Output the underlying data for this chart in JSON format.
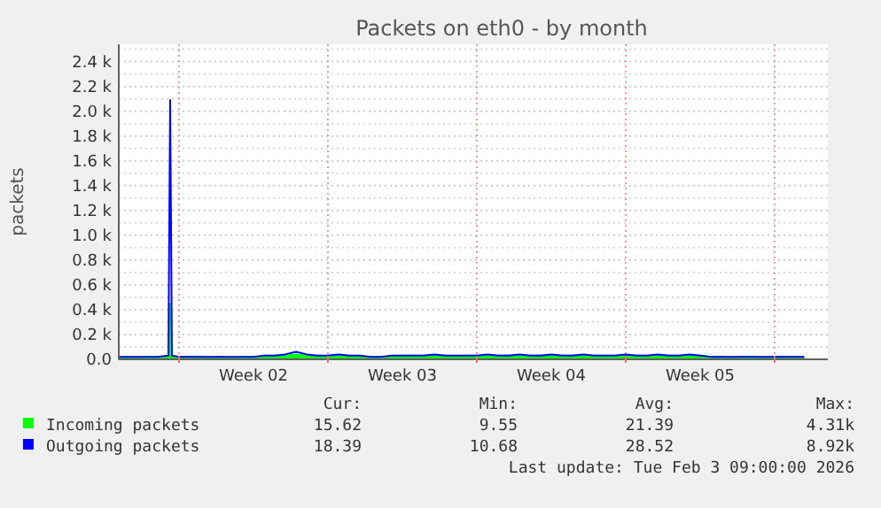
{
  "chart_data": {
    "type": "line",
    "title": "Packets on eth0 - by month",
    "ylabel": "packets",
    "xlim": [
      "2026-01-02T04:00",
      "2026-02-04T12:00"
    ],
    "xticks": [
      {
        "value": "2026-01-05T00:00",
        "label": null
      },
      {
        "value": "2026-01-08T12:00",
        "label": "Week 02"
      },
      {
        "value": "2026-01-12T00:00",
        "label": null
      },
      {
        "value": "2026-01-15T12:00",
        "label": "Week 03"
      },
      {
        "value": "2026-01-19T00:00",
        "label": null
      },
      {
        "value": "2026-01-22T12:00",
        "label": "Week 04"
      },
      {
        "value": "2026-01-26T00:00",
        "label": null
      },
      {
        "value": "2026-01-29T12:00",
        "label": "Week 05"
      },
      {
        "value": "2026-02-02T00:00",
        "label": null
      }
    ],
    "ylim": [
      0,
      2540
    ],
    "yticks": [
      {
        "value": 0,
        "label": "0.0"
      },
      {
        "value": 100,
        "label": null
      },
      {
        "value": 200,
        "label": "0.2 k"
      },
      {
        "value": 300,
        "label": null
      },
      {
        "value": 400,
        "label": "0.4 k"
      },
      {
        "value": 500,
        "label": null
      },
      {
        "value": 600,
        "label": "0.6 k"
      },
      {
        "value": 700,
        "label": null
      },
      {
        "value": 800,
        "label": "0.8 k"
      },
      {
        "value": 900,
        "label": null
      },
      {
        "value": 1000,
        "label": "1.0 k"
      },
      {
        "value": 1100,
        "label": null
      },
      {
        "value": 1200,
        "label": "1.2 k"
      },
      {
        "value": 1300,
        "label": null
      },
      {
        "value": 1400,
        "label": "1.4 k"
      },
      {
        "value": 1500,
        "label": null
      },
      {
        "value": 1600,
        "label": "1.6 k"
      },
      {
        "value": 1700,
        "label": null
      },
      {
        "value": 1800,
        "label": "1.8 k"
      },
      {
        "value": 1900,
        "label": null
      },
      {
        "value": 2000,
        "label": "2.0 k"
      },
      {
        "value": 2100,
        "label": null
      },
      {
        "value": 2200,
        "label": "2.2 k"
      },
      {
        "value": 2300,
        "label": null
      },
      {
        "value": 2400,
        "label": "2.4 k"
      },
      {
        "value": 2500,
        "label": null
      }
    ],
    "grid": true,
    "legend": "bottom",
    "x": [
      "2026-01-02T04:00",
      "2026-01-02T12:00",
      "2026-01-03T00:00",
      "2026-01-03T12:00",
      "2026-01-04T00:00",
      "2026-01-04T12:00",
      "2026-01-04T14:00",
      "2026-01-04T16:00",
      "2026-01-05T00:00",
      "2026-01-05T12:00",
      "2026-01-06T00:00",
      "2026-01-06T12:00",
      "2026-01-07T00:00",
      "2026-01-07T12:00",
      "2026-01-08T00:00",
      "2026-01-08T12:00",
      "2026-01-09T00:00",
      "2026-01-09T12:00",
      "2026-01-10T00:00",
      "2026-01-10T12:00",
      "2026-01-11T00:00",
      "2026-01-11T12:00",
      "2026-01-12T00:00",
      "2026-01-12T12:00",
      "2026-01-13T00:00",
      "2026-01-13T12:00",
      "2026-01-14T00:00",
      "2026-01-14T12:00",
      "2026-01-15T00:00",
      "2026-01-15T12:00",
      "2026-01-16T00:00",
      "2026-01-16T12:00",
      "2026-01-17T00:00",
      "2026-01-17T12:00",
      "2026-01-18T00:00",
      "2026-01-18T12:00",
      "2026-01-19T00:00",
      "2026-01-19T12:00",
      "2026-01-20T00:00",
      "2026-01-20T12:00",
      "2026-01-21T00:00",
      "2026-01-21T12:00",
      "2026-01-22T00:00",
      "2026-01-22T12:00",
      "2026-01-23T00:00",
      "2026-01-23T12:00",
      "2026-01-24T00:00",
      "2026-01-24T12:00",
      "2026-01-25T00:00",
      "2026-01-25T12:00",
      "2026-01-26T00:00",
      "2026-01-26T12:00",
      "2026-01-27T00:00",
      "2026-01-27T12:00",
      "2026-01-28T00:00",
      "2026-01-28T12:00",
      "2026-01-29T00:00",
      "2026-01-29T12:00",
      "2026-01-30T00:00",
      "2026-01-30T12:00",
      "2026-01-31T00:00",
      "2026-01-31T12:00",
      "2026-02-01T00:00",
      "2026-02-01T12:00",
      "2026-02-02T00:00",
      "2026-02-02T12:00",
      "2026-02-03T00:00",
      "2026-02-03T09:00"
    ],
    "series": [
      {
        "name": "Incoming packets",
        "type": "area",
        "color": "#00ff00",
        "values": [
          10,
          20,
          10,
          20,
          20,
          20,
          450,
          20,
          20,
          20,
          20,
          10,
          20,
          10,
          20,
          20,
          20,
          30,
          30,
          40,
          30,
          20,
          30,
          30,
          20,
          20,
          20,
          20,
          20,
          30,
          30,
          30,
          30,
          30,
          20,
          30,
          30,
          30,
          30,
          30,
          30,
          30,
          30,
          30,
          30,
          30,
          30,
          30,
          30,
          30,
          30,
          30,
          30,
          30,
          30,
          30,
          30,
          30,
          20,
          20,
          10,
          20,
          20,
          10,
          20,
          20,
          20,
          20
        ]
      },
      {
        "name": "Outgoing packets",
        "color": "#0000ff",
        "values": [
          20,
          20,
          20,
          20,
          20,
          30,
          2090,
          30,
          20,
          20,
          20,
          20,
          20,
          20,
          20,
          20,
          30,
          30,
          40,
          60,
          40,
          30,
          30,
          40,
          30,
          30,
          20,
          20,
          30,
          30,
          30,
          30,
          40,
          30,
          30,
          30,
          30,
          40,
          30,
          30,
          40,
          30,
          30,
          40,
          30,
          30,
          40,
          30,
          30,
          30,
          40,
          30,
          30,
          40,
          30,
          30,
          40,
          30,
          20,
          20,
          20,
          20,
          20,
          20,
          20,
          20,
          20,
          20
        ]
      }
    ],
    "annotations": [
      "Cur:",
      "Min:",
      "Avg:",
      "Max:",
      "15.62",
      "9.55",
      "21.39",
      "4.31k",
      "18.39",
      "10.68",
      "28.52",
      "8.92k",
      "Last update: Tue Feb  3 09:00:00 2026"
    ]
  }
}
